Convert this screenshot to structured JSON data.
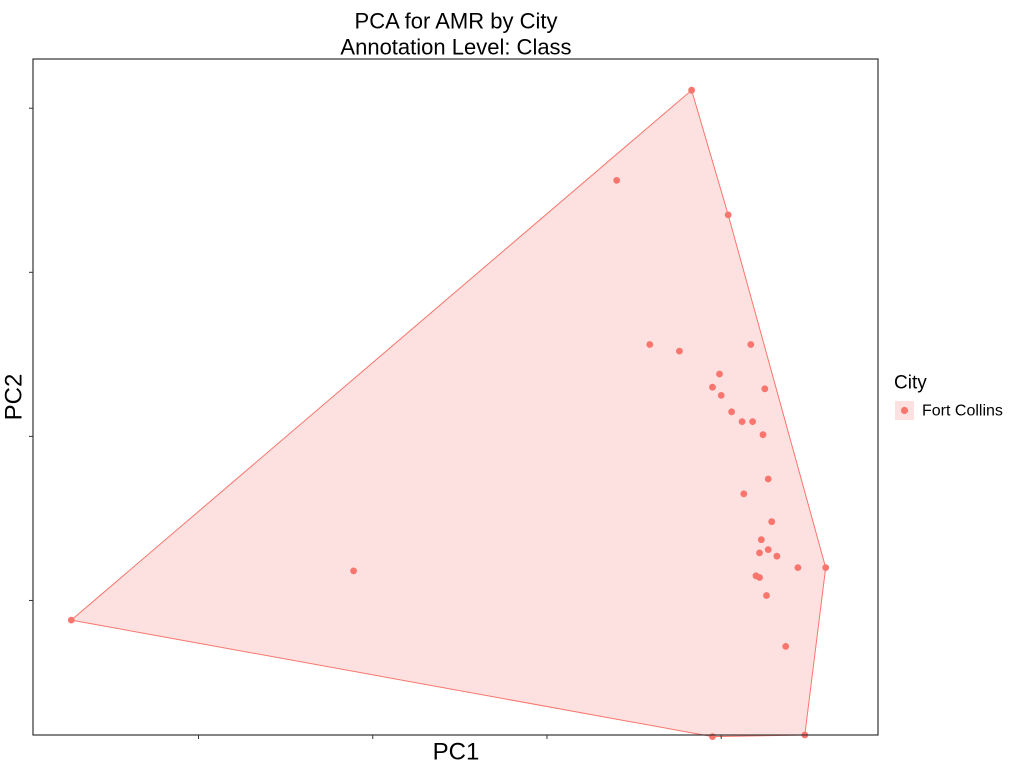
{
  "chart_data": {
    "type": "scatter",
    "title": "PCA for AMR by City",
    "subtitle": "Annotation Level: Class",
    "xlabel": "PC1",
    "ylabel": "PC2",
    "xlim": [
      -0.1,
      4.75
    ],
    "ylim": [
      -2.82,
      1.3
    ],
    "x_ticks": [
      0.85,
      1.85,
      2.85,
      3.85
    ],
    "y_ticks": [
      -2.0,
      -1.0,
      0.0,
      1.0
    ],
    "tick_labels_shown": false,
    "grid": false,
    "legend": {
      "title": "City",
      "position": "right",
      "entries": [
        "Fort Collins"
      ]
    },
    "hull": true,
    "series": [
      {
        "name": "Fort Collins",
        "color": "#F8766D",
        "fill": "#FCE1E0",
        "points": [
          {
            "x": 3.68,
            "y": 1.11
          },
          {
            "x": 3.25,
            "y": 0.56
          },
          {
            "x": 3.89,
            "y": 0.35
          },
          {
            "x": 3.44,
            "y": -0.44
          },
          {
            "x": 3.61,
            "y": -0.48
          },
          {
            "x": 4.02,
            "y": -0.44
          },
          {
            "x": 3.84,
            "y": -0.62
          },
          {
            "x": 3.8,
            "y": -0.7
          },
          {
            "x": 3.85,
            "y": -0.75
          },
          {
            "x": 4.1,
            "y": -0.71
          },
          {
            "x": 3.91,
            "y": -0.85
          },
          {
            "x": 3.97,
            "y": -0.91
          },
          {
            "x": 4.03,
            "y": -0.91
          },
          {
            "x": 4.09,
            "y": -0.99
          },
          {
            "x": 4.12,
            "y": -1.26
          },
          {
            "x": 3.98,
            "y": -1.35
          },
          {
            "x": 4.14,
            "y": -1.52
          },
          {
            "x": 4.08,
            "y": -1.63
          },
          {
            "x": 4.12,
            "y": -1.69
          },
          {
            "x": 4.07,
            "y": -1.71
          },
          {
            "x": 4.17,
            "y": -1.73
          },
          {
            "x": 4.05,
            "y": -1.85
          },
          {
            "x": 4.07,
            "y": -1.86
          },
          {
            "x": 4.29,
            "y": -1.8
          },
          {
            "x": 4.11,
            "y": -1.97
          },
          {
            "x": 4.22,
            "y": -2.28
          },
          {
            "x": 1.74,
            "y": -1.82
          },
          {
            "x": 0.12,
            "y": -2.12
          },
          {
            "x": 3.8,
            "y": -2.83
          },
          {
            "x": 4.33,
            "y": -2.82
          },
          {
            "x": 4.45,
            "y": -1.8
          }
        ]
      }
    ]
  }
}
